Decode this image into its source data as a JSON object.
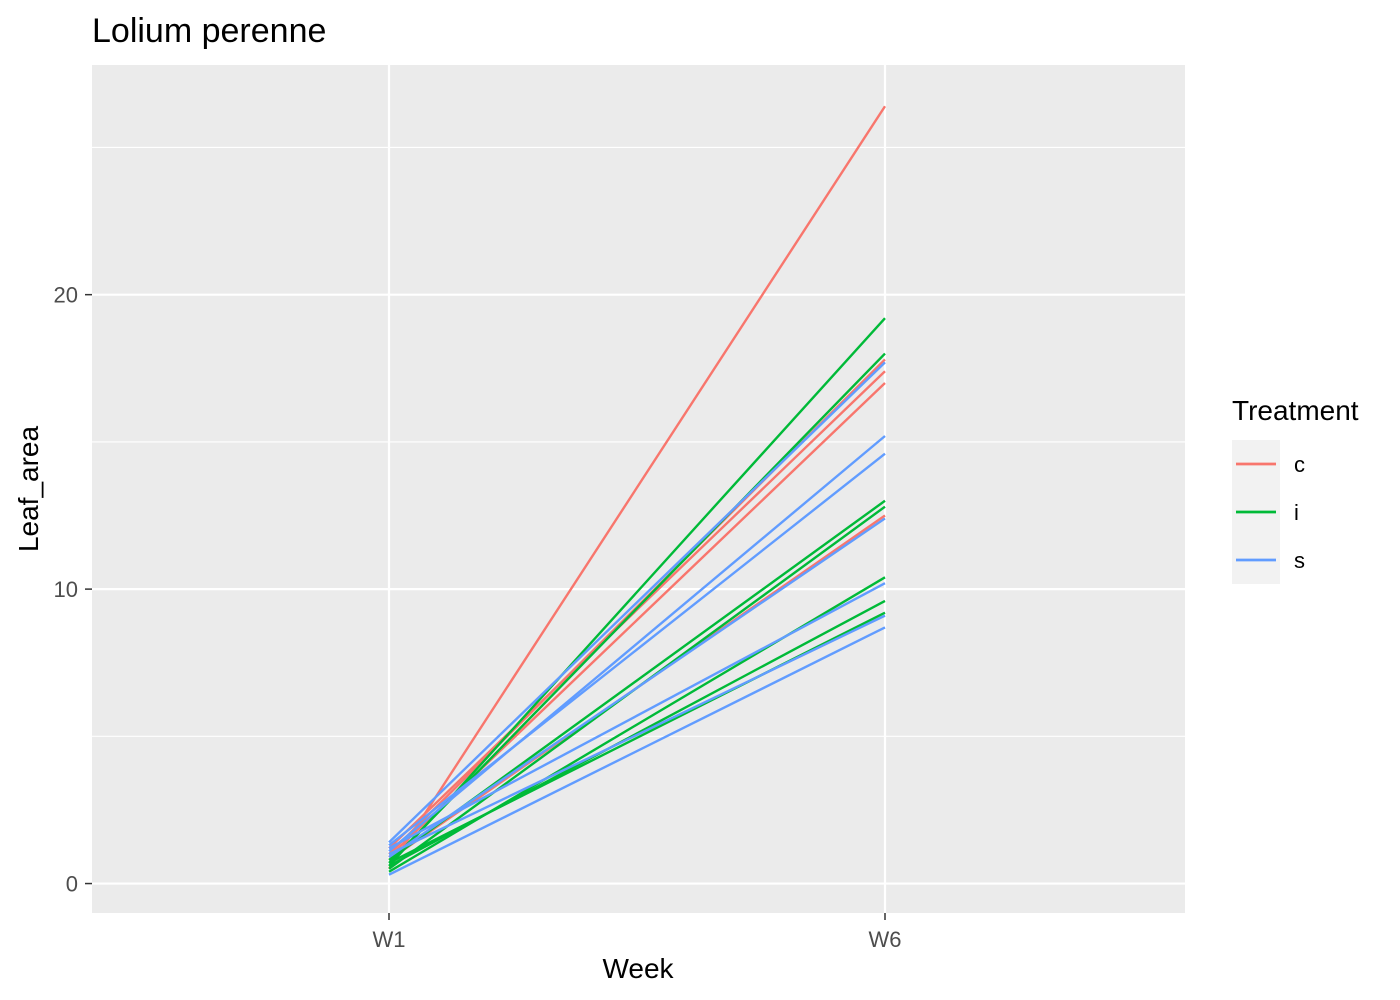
{
  "chart_data": {
    "type": "line",
    "title": "Lolium perenne",
    "xlabel": "Week",
    "ylabel": "Leaf_area",
    "categories": [
      "W1",
      "W6"
    ],
    "ylim": [
      -1,
      27.8
    ],
    "y_ticks": [
      0,
      10,
      20
    ],
    "y_tick_labels": [
      "0",
      "10",
      "20"
    ],
    "grid": true,
    "legend": {
      "title": "Treatment",
      "placement": "right",
      "entries": [
        "c",
        "i",
        "s"
      ]
    },
    "colors": {
      "c": "#F8766D",
      "i": "#00BA38",
      "s": "#619CFF",
      "panel": "#EBEBEB",
      "grid": "#FFFFFF"
    },
    "series": [
      {
        "group": "c",
        "values": [
          0.5,
          26.4
        ]
      },
      {
        "group": "c",
        "values": [
          1.0,
          17.8
        ]
      },
      {
        "group": "c",
        "values": [
          1.2,
          17.4
        ]
      },
      {
        "group": "c",
        "values": [
          0.9,
          17.0
        ]
      },
      {
        "group": "c",
        "values": [
          0.8,
          12.5
        ]
      },
      {
        "group": "i",
        "values": [
          0.6,
          19.2
        ]
      },
      {
        "group": "i",
        "values": [
          0.7,
          18.0
        ]
      },
      {
        "group": "i",
        "values": [
          0.8,
          13.0
        ]
      },
      {
        "group": "i",
        "values": [
          0.5,
          12.8
        ]
      },
      {
        "group": "i",
        "values": [
          0.4,
          10.4
        ]
      },
      {
        "group": "i",
        "values": [
          0.6,
          9.6
        ]
      },
      {
        "group": "i",
        "values": [
          0.7,
          9.2
        ]
      },
      {
        "group": "s",
        "values": [
          1.4,
          17.7
        ]
      },
      {
        "group": "s",
        "values": [
          1.1,
          15.2
        ]
      },
      {
        "group": "s",
        "values": [
          1.3,
          14.6
        ]
      },
      {
        "group": "s",
        "values": [
          0.9,
          12.4
        ]
      },
      {
        "group": "s",
        "values": [
          1.2,
          10.2
        ]
      },
      {
        "group": "s",
        "values": [
          1.0,
          9.1
        ]
      },
      {
        "group": "s",
        "values": [
          0.3,
          8.7
        ]
      }
    ]
  }
}
